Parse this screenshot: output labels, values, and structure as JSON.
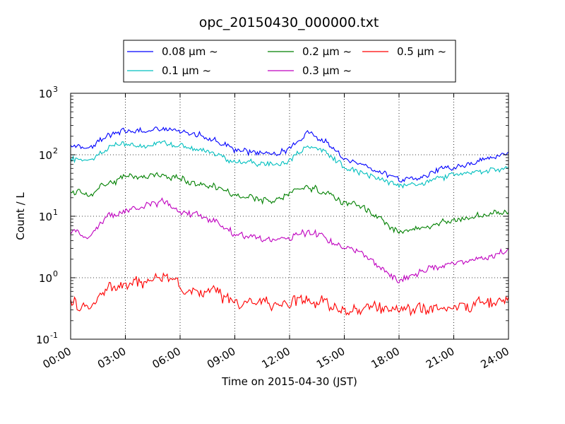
{
  "chart_data": {
    "type": "line",
    "title": "opc_20150430_000000.txt",
    "xlabel": "Time on 2015-04-30 (JST)",
    "ylabel": "Count / L",
    "yscale": "log",
    "xlim": [
      "2015-04-30 00:00",
      "2015-05-01 00:00"
    ],
    "ylim": [
      0.1,
      1000
    ],
    "grid": "on (dotted)",
    "legend_placement": "top-center, above plot",
    "x_tick_labels": [
      "00:00",
      "03:00",
      "06:00",
      "09:00",
      "12:00",
      "15:00",
      "18:00",
      "21:00",
      "24:00"
    ],
    "y_tick_labels": [
      {
        "base": "10",
        "exp": "-1"
      },
      {
        "base": "10",
        "exp": "0"
      },
      {
        "base": "10",
        "exp": "1"
      },
      {
        "base": "10",
        "exp": "2"
      },
      {
        "base": "10",
        "exp": "3"
      }
    ],
    "x": [
      "00:00",
      "01:00",
      "02:00",
      "03:00",
      "04:00",
      "05:00",
      "06:00",
      "07:00",
      "08:00",
      "09:00",
      "10:00",
      "11:00",
      "12:00",
      "13:00",
      "14:00",
      "15:00",
      "16:00",
      "17:00",
      "18:00",
      "19:00",
      "20:00",
      "21:00",
      "22:00",
      "23:00",
      "24:00"
    ],
    "series": [
      {
        "name": "0.08 μm ~",
        "color": "#0000ff",
        "noise": 0.06,
        "values": [
          150,
          130,
          200,
          250,
          230,
          260,
          240,
          220,
          170,
          120,
          110,
          100,
          120,
          220,
          160,
          80,
          70,
          55,
          38,
          40,
          55,
          65,
          70,
          90,
          110
        ]
      },
      {
        "name": "0.1 μm ~",
        "color": "#00bfbf",
        "noise": 0.06,
        "values": [
          85,
          75,
          130,
          150,
          130,
          160,
          140,
          120,
          100,
          75,
          75,
          70,
          80,
          140,
          110,
          60,
          50,
          40,
          32,
          33,
          40,
          45,
          50,
          55,
          65
        ]
      },
      {
        "name": "0.2 μm ~",
        "color": "#008000",
        "noise": 0.07,
        "values": [
          25,
          22,
          35,
          45,
          45,
          50,
          40,
          35,
          30,
          22,
          20,
          18,
          22,
          30,
          25,
          16,
          15,
          9,
          5.5,
          6,
          7.5,
          8.5,
          10,
          11,
          12
        ]
      },
      {
        "name": "0.3 μm ~",
        "color": "#bf00bf",
        "noise": 0.07,
        "values": [
          5.5,
          4.5,
          10,
          12,
          14,
          18,
          12,
          10,
          8,
          5,
          4.5,
          4,
          4.5,
          5.5,
          4.5,
          3,
          2.5,
          1.4,
          0.9,
          1.2,
          1.5,
          1.7,
          1.9,
          2.2,
          2.8
        ]
      },
      {
        "name": "0.5 μm ~",
        "color": "#ff0000",
        "noise": 0.12,
        "values": [
          0.42,
          0.35,
          0.65,
          0.75,
          0.8,
          1.1,
          0.8,
          0.6,
          0.55,
          0.42,
          0.4,
          0.38,
          0.4,
          0.45,
          0.4,
          0.28,
          0.3,
          0.3,
          0.28,
          0.3,
          0.32,
          0.35,
          0.38,
          0.42,
          0.45
        ]
      }
    ]
  }
}
